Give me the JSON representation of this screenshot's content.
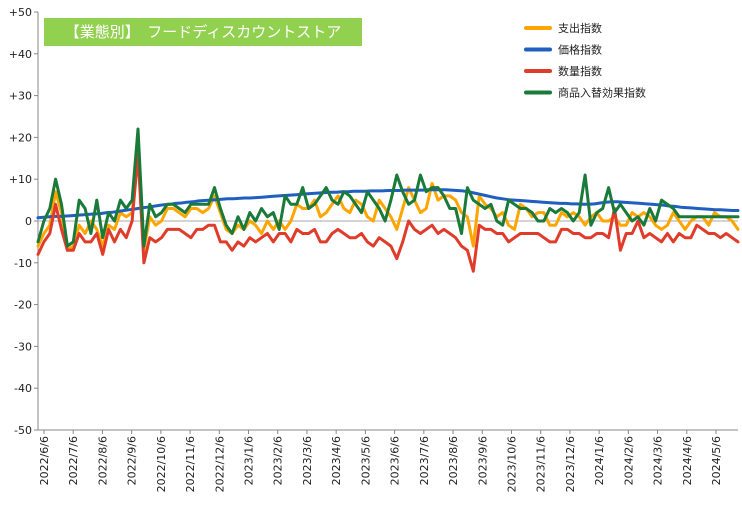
{
  "chart_data": {
    "type": "line",
    "title": "【業態別】　フードディスカウントストア",
    "ylim": [
      -50,
      50
    ],
    "y_ticks": [
      "+50",
      "+40",
      "+30",
      "+20",
      "+10",
      "0",
      "-10",
      "-20",
      "-30",
      "-40",
      "-50"
    ],
    "x_tick_labels": [
      "2022/6/6",
      "2022/7/6",
      "2022/8/6",
      "2022/9/6",
      "2022/10/6",
      "2022/11/6",
      "2022/12/6",
      "2023/1/6",
      "2023/2/6",
      "2023/3/6",
      "2023/4/6",
      "2023/5/6",
      "2023/6/6",
      "2023/7/6",
      "2023/8/6",
      "2023/9/6",
      "2023/10/6",
      "2023/11/6",
      "2023/12/6",
      "2024/1/6",
      "2024/2/6",
      "2024/3/6",
      "2024/4/6",
      "2024/5/6"
    ],
    "grid": false,
    "legend_position": "top-right",
    "series": [
      {
        "name": "支出指数",
        "color": "#ffa500",
        "values": [
          -6,
          -3,
          -1,
          7,
          2,
          -7,
          -6,
          -1,
          -3,
          0,
          -2,
          -6,
          -1,
          -2,
          2,
          1,
          2,
          16,
          -7,
          1,
          -1,
          0,
          3,
          3,
          2,
          1,
          3,
          3,
          2,
          3,
          6,
          2,
          -2,
          -3,
          -1,
          -2,
          0,
          -1,
          -3,
          0,
          -2,
          0,
          -2,
          0,
          4,
          3,
          3,
          5,
          1,
          2,
          4,
          6,
          3,
          2,
          5,
          4,
          1,
          0,
          5,
          3,
          1,
          -2,
          3,
          8,
          5,
          2,
          3,
          9,
          5,
          6,
          6,
          5,
          2,
          1,
          -6,
          6,
          4,
          3,
          1,
          2,
          -1,
          -2,
          4,
          3,
          1,
          2,
          2,
          -1,
          -1,
          2,
          1,
          2,
          1,
          -1,
          1,
          2,
          0,
          0,
          1,
          -1,
          -1,
          2,
          1,
          2,
          1,
          -1,
          -2,
          -1,
          2,
          0,
          -2,
          0,
          1,
          1,
          -1,
          2,
          1,
          1,
          0,
          -2
        ]
      },
      {
        "name": "価格指数",
        "color": "#1f5fbf",
        "values": [
          0.8,
          0.9,
          1.0,
          1.1,
          1.1,
          1.2,
          1.3,
          1.4,
          1.5,
          1.6,
          1.7,
          1.8,
          2.0,
          2.1,
          2.3,
          2.5,
          2.7,
          2.9,
          3.1,
          3.3,
          3.5,
          3.7,
          3.9,
          4.0,
          4.2,
          4.3,
          4.5,
          4.6,
          4.8,
          4.9,
          5.0,
          5.1,
          5.2,
          5.3,
          5.3,
          5.4,
          5.5,
          5.5,
          5.6,
          5.7,
          5.8,
          5.9,
          6.0,
          6.1,
          6.2,
          6.3,
          6.4,
          6.5,
          6.6,
          6.7,
          6.8,
          6.9,
          6.9,
          7.0,
          7.0,
          7.1,
          7.1,
          7.1,
          7.2,
          7.2,
          7.2,
          7.3,
          7.3,
          7.3,
          7.4,
          7.4,
          7.4,
          7.4,
          7.5,
          7.5,
          7.5,
          7.5,
          7.4,
          7.3,
          7.2,
          7.0,
          6.7,
          6.4,
          6.1,
          5.8,
          5.5,
          5.3,
          5.1,
          5.0,
          4.9,
          4.8,
          4.7,
          4.6,
          4.5,
          4.4,
          4.3,
          4.2,
          4.2,
          4.1,
          4.1,
          4.0,
          4.0,
          4.1,
          4.3,
          4.5,
          4.6,
          4.6,
          4.5,
          4.4,
          4.3,
          4.2,
          4.1,
          4.0,
          3.9,
          3.8,
          3.6,
          3.5,
          3.3,
          3.2,
          3.1,
          3.0,
          2.9,
          2.8,
          2.7,
          2.7,
          2.6,
          2.5,
          2.5
        ]
      },
      {
        "name": "数量指数",
        "color": "#e03c2b",
        "values": [
          -8,
          -5,
          -3,
          4,
          -2,
          -7,
          -7,
          -3,
          -5,
          -5,
          -3,
          -8,
          -2,
          -5,
          -2,
          -4,
          0,
          16,
          -10,
          -4,
          -5,
          -4,
          -2,
          -2,
          -2,
          -3,
          -4,
          -2,
          -2,
          -1,
          -1,
          -5,
          -5,
          -7,
          -5,
          -6,
          -4,
          -5,
          -4,
          -3,
          -5,
          -3,
          -3,
          -5,
          -2,
          -3,
          -3,
          -2,
          -5,
          -5,
          -3,
          -2,
          -3,
          -4,
          -4,
          -3,
          -5,
          -6,
          -4,
          -5,
          -6,
          -9,
          -5,
          0,
          -2,
          -3,
          -2,
          -1,
          -3,
          -2,
          -3,
          -4,
          -6,
          -7,
          -12,
          -1,
          -2,
          -2,
          -3,
          -3,
          -5,
          -4,
          -3,
          -3,
          -3,
          -3,
          -4,
          -5,
          -5,
          -2,
          -2,
          -3,
          -3,
          -4,
          -4,
          -3,
          -3,
          -4,
          3,
          -7,
          -3,
          -3,
          0,
          -4,
          -3,
          -4,
          -5,
          -3,
          -5,
          -3,
          -4,
          -4,
          -1,
          -2,
          -3,
          -3,
          -4,
          -3,
          -4,
          -5
        ]
      },
      {
        "name": "商品入替効果指数",
        "color": "#1a7a3a",
        "values": [
          -5,
          0,
          3,
          10,
          4,
          -6,
          -5,
          5,
          3,
          -3,
          5,
          -4,
          2,
          0,
          5,
          3,
          5,
          22,
          -6,
          4,
          1,
          2,
          4,
          4,
          3,
          2,
          4,
          4,
          4,
          4,
          8,
          3,
          -1,
          -3,
          1,
          -2,
          2,
          0,
          3,
          1,
          2,
          -2,
          6,
          4,
          4,
          8,
          3,
          4,
          6,
          8,
          5,
          4,
          7,
          6,
          4,
          2,
          7,
          5,
          3,
          0,
          5,
          11,
          7,
          4,
          5,
          11,
          7,
          8,
          8,
          6,
          3,
          3,
          -3,
          8,
          5,
          4,
          3,
          4,
          0,
          -1,
          5,
          4,
          3,
          3,
          2,
          0,
          0,
          3,
          2,
          3,
          2,
          0,
          2,
          11,
          -1,
          2,
          3,
          8,
          2,
          4,
          2,
          0,
          1,
          -1,
          3,
          0,
          5,
          4,
          3,
          1,
          1,
          1,
          1,
          1,
          1,
          1,
          1,
          1,
          1,
          1
        ]
      }
    ]
  }
}
